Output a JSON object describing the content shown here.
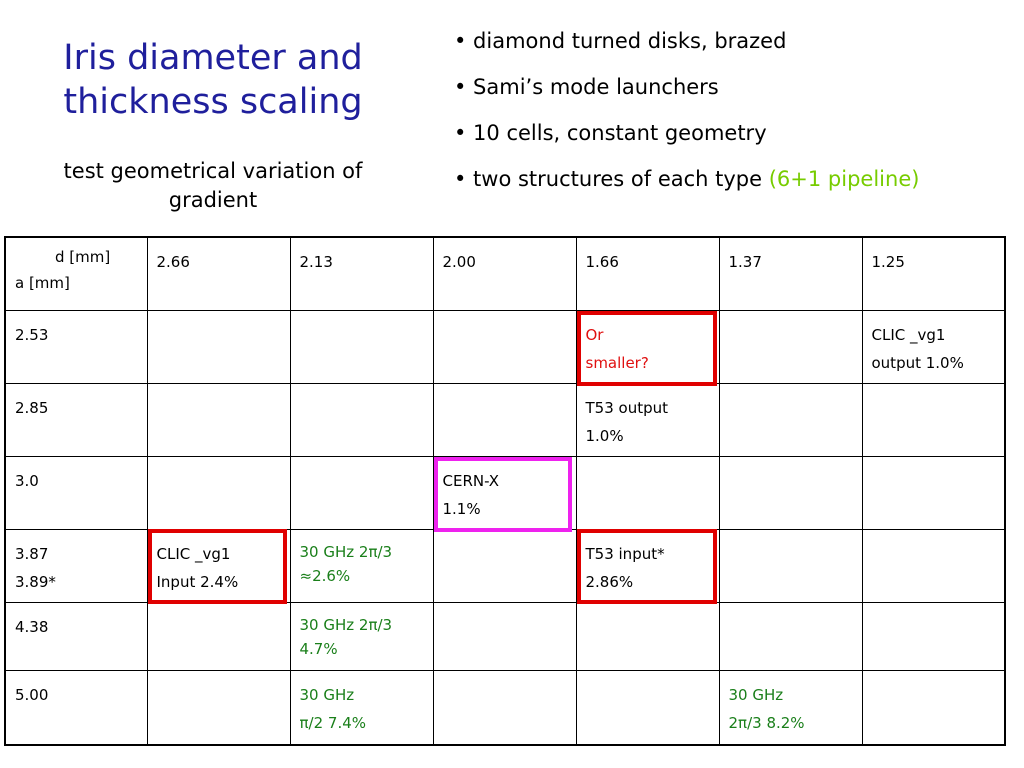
{
  "title_line1": "Iris diameter and",
  "title_line2": "thickness scaling",
  "subtitle": "test geometrical variation of gradient",
  "bullets": [
    "• diamond turned disks, brazed",
    "• Sami’s mode launchers",
    "• 10 cells, constant geometry",
    "• two structures of each type "
  ],
  "bullet_note": "(6+1 pipeline)",
  "table": {
    "corner_d": "d [mm]",
    "corner_a": "a [mm]",
    "d_values": [
      "2.66",
      "2.13",
      "2.00",
      "1.66",
      "1.37",
      "1.25"
    ],
    "rows": [
      {
        "a": [
          "2.53"
        ],
        "cells": {
          "1.66": [
            "Or",
            "smaller?"
          ],
          "1.25": [
            "CLIC _vg1",
            "output 1.0%"
          ]
        }
      },
      {
        "a": [
          "2.85"
        ],
        "cells": {
          "1.66": [
            "T53 output",
            "1.0%"
          ]
        }
      },
      {
        "a": [
          "3.0"
        ],
        "cells": {
          "2.00": [
            "CERN-X",
            "1.1%"
          ]
        }
      },
      {
        "a": [
          "3.87",
          "3.89*"
        ],
        "cells": {
          "2.66": [
            "CLIC _vg1",
            "Input 2.4%"
          ],
          "2.13": [
            "30 GHz 2π/3",
            "≈2.6%"
          ],
          "1.66": [
            "T53 input*",
            "2.86%"
          ]
        }
      },
      {
        "a": [
          "4.38"
        ],
        "cells": {
          "2.13": [
            "30 GHz 2π/3",
            "4.7%"
          ]
        }
      },
      {
        "a": [
          "5.00"
        ],
        "cells": {
          "2.13": [
            "30 GHz",
            "π/2 7.4%"
          ],
          "1.37": [
            "30 GHz",
            "2π/3 8.2%"
          ]
        }
      }
    ]
  },
  "colors": {
    "title": "#1f1f9c",
    "note_green": "#77cc00",
    "cell_green": "#1a7f1a",
    "highlight_red": "#e00000",
    "highlight_magenta": "#ee22ee"
  }
}
